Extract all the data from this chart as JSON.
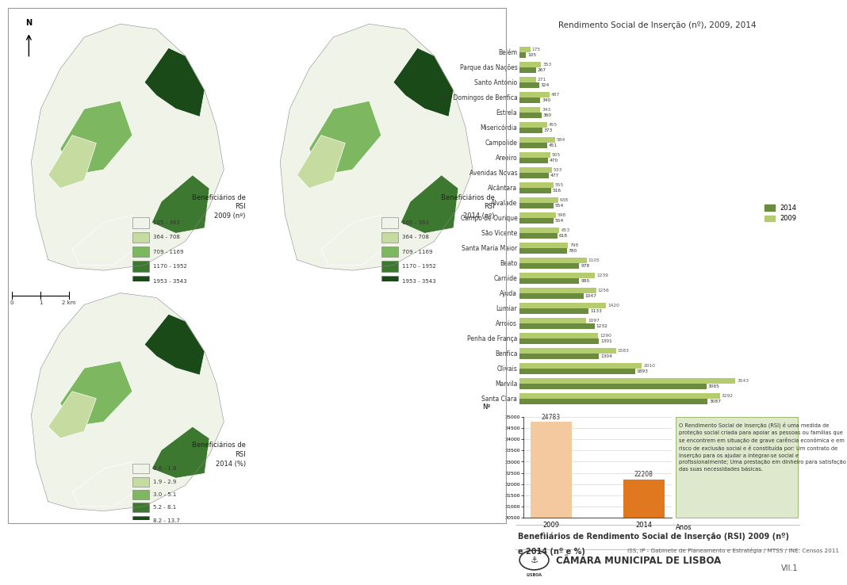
{
  "title_bar": "Rendimento Social de Inserção (nº), 2009, 2014",
  "categories": [
    "Belém",
    "Parque das Nações",
    "Santo António",
    "São Domingos de Benfica",
    "Estrela",
    "Misericórdia",
    "Campolide",
    "Areeiro",
    "Avenidas Novas",
    "Alcântara",
    "Alvalade",
    "Campo de Ourique",
    "São Vicente",
    "Santa Maria Maior",
    "Beato",
    "Carnide",
    "Ajuda",
    "Lumiar",
    "Arroios",
    "Penha de França",
    "Benfica",
    "Olivais",
    "Marvila",
    "Santa Clara"
  ],
  "values_2014": [
    105,
    267,
    324,
    340,
    360,
    373,
    451,
    470,
    477,
    516,
    554,
    554,
    618,
    780,
    978,
    980,
    1047,
    1133,
    1232,
    1301,
    1304,
    1893,
    3065,
    3087
  ],
  "values_2009": [
    175,
    353,
    271,
    487,
    343,
    455,
    584,
    505,
    533,
    555,
    638,
    598,
    653,
    798,
    1105,
    1239,
    1256,
    1420,
    1097,
    1290,
    1583,
    2010,
    3543,
    3292
  ],
  "color_2014": "#6b8c3e",
  "color_2009": "#b5cc6e",
  "bar_chart_2009_val": 24783,
  "bar_chart_2014_val": 22208,
  "bar_chart_color_2009": "#f5c9a0",
  "bar_chart_color_2014": "#e07820",
  "bar_ylim_min": 20500,
  "bar_ylim_max": 25000,
  "bar_yticks": [
    20500,
    21000,
    21500,
    22000,
    22500,
    23000,
    23500,
    24000,
    24500,
    25000
  ],
  "description_text": "O Rendimento Social de Inserção (RSI) é uma medida de proteção social criada para apoiar as pessoas ou famílias que se encontrem em situação de grave carência económica e em risco de exclusão social e é constituída por: Um contrato de inserção para os ajudar a integrar-se social e profissionalmente; Uma prestação em dinheiro para satisfação das suas necessidades básicas.",
  "footer_line1_bold": "Benefìiários de Rendimento Social de Inserção (RSI) 2009 (nº)",
  "footer_line2_bold": "e 2014 (nº e %)",
  "footer_source": "ISS, IP - Gabinete de Planeamento e Estratégia / MTSS / INE: Censos 2011",
  "camara_text": "CÂMARA MUNICIPAL DE LISBOA",
  "page_num": "VII.1",
  "bg_color": "#ffffff",
  "map_border_color": "#cccccc",
  "legend_colors_count": [
    "#f0f4e8",
    "#c5dba0",
    "#7db860",
    "#3d7830",
    "#1a4a18"
  ],
  "legend_labels_count": [
    "105 - 363",
    "364 - 708",
    "709 - 1169",
    "1170 - 1952",
    "1953 - 3543"
  ],
  "legend_colors_pct": [
    "#f0f4e8",
    "#c5dba0",
    "#7db860",
    "#3d7830",
    "#1a4a18"
  ],
  "legend_labels_pct": [
    "0.6 - 1.8",
    "1.9 - 2.9",
    "3.0 - 5.1",
    "5.2 - 8.1",
    "8.2 - 13.7"
  ],
  "desc_bg_color": "#dde8cc",
  "desc_border_color": "#9db870"
}
